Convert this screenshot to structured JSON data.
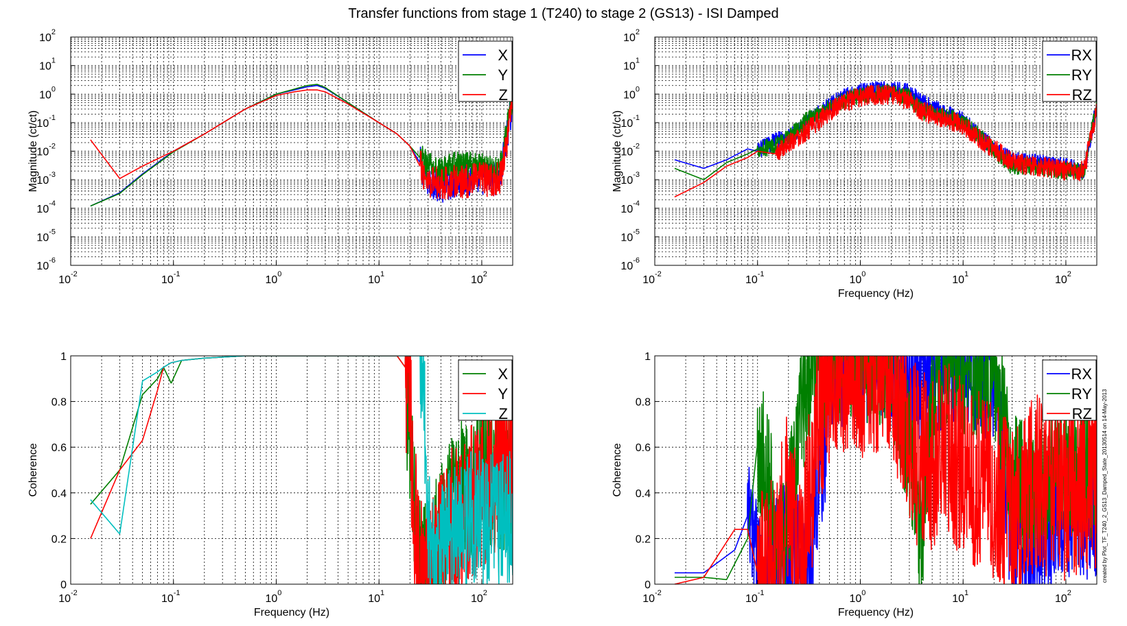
{
  "title": "Transfer functions from stage 1 (T240) to stage 2 (GS13) - ISI Damped",
  "side_note": "created by Plot_TF_T240_2_GS13_Damped_State_20130514 on 14-May-2013",
  "colors": {
    "blue": "#0000ff",
    "green": "#007f00",
    "red": "#ff0000",
    "cyan": "#00bfbf",
    "grid": "#000000"
  },
  "chart_data": [
    {
      "id": "p1",
      "type": "line",
      "xscale": "log",
      "yscale": "log",
      "xlim": [
        0.01,
        200
      ],
      "ylim": [
        1e-06,
        100
      ],
      "xlabel": "",
      "ylabel": "Magnitude (ct/ct)",
      "grid": true,
      "legend_position": "top-right",
      "x_ticks": [
        {
          "base": "10",
          "exp": "-2"
        },
        {
          "base": "10",
          "exp": "-1"
        },
        {
          "base": "10",
          "exp": "0"
        },
        {
          "base": "10",
          "exp": "1"
        },
        {
          "base": "10",
          "exp": "2"
        }
      ],
      "y_ticks": [
        {
          "base": "10",
          "exp": "-6"
        },
        {
          "base": "10",
          "exp": "-5"
        },
        {
          "base": "10",
          "exp": "-4"
        },
        {
          "base": "10",
          "exp": "-3"
        },
        {
          "base": "10",
          "exp": "-2"
        },
        {
          "base": "10",
          "exp": "-1"
        },
        {
          "base": "10",
          "exp": "0"
        },
        {
          "base": "10",
          "exp": "1"
        },
        {
          "base": "10",
          "exp": "2"
        }
      ],
      "series": [
        {
          "name": "X",
          "color": "#0000ff",
          "x": [
            0.0156,
            0.03,
            0.05,
            0.1,
            0.2,
            0.5,
            1,
            1.5,
            2,
            2.5,
            3,
            5,
            10,
            15,
            20,
            25,
            30,
            40,
            50,
            70,
            100,
            150,
            200
          ],
          "y": [
            0.00012,
            0.00035,
            0.0016,
            0.01,
            0.04,
            0.3,
            1.0,
            1.4,
            1.8,
            2.0,
            1.6,
            0.5,
            0.1,
            0.04,
            0.015,
            0.004,
            0.001,
            0.0006,
            0.0008,
            0.001,
            0.0012,
            0.001,
            0.6
          ],
          "noise_from": 25,
          "noise_decades": 0.6
        },
        {
          "name": "Y",
          "color": "#007f00",
          "x": [
            0.0156,
            0.03,
            0.05,
            0.1,
            0.2,
            0.5,
            1,
            1.5,
            2,
            2.5,
            3,
            5,
            10,
            15,
            20,
            25,
            30,
            40,
            50,
            70,
            100,
            150,
            200
          ],
          "y": [
            0.00012,
            0.00033,
            0.0015,
            0.0095,
            0.04,
            0.3,
            1.0,
            1.5,
            2.0,
            2.2,
            1.7,
            0.5,
            0.1,
            0.04,
            0.015,
            0.006,
            0.003,
            0.002,
            0.003,
            0.003,
            0.003,
            0.002,
            1.0
          ],
          "noise_from": 25,
          "noise_decades": 0.5
        },
        {
          "name": "Z",
          "color": "#ff0000",
          "x": [
            0.0156,
            0.03,
            0.05,
            0.1,
            0.2,
            0.5,
            1,
            1.5,
            2,
            2.5,
            3,
            5,
            10,
            15,
            20,
            25,
            30,
            40,
            50,
            70,
            100,
            150,
            200
          ],
          "y": [
            0.025,
            0.0011,
            0.003,
            0.01,
            0.04,
            0.3,
            0.9,
            1.2,
            1.4,
            1.4,
            1.2,
            0.45,
            0.1,
            0.04,
            0.015,
            0.003,
            0.001,
            0.0008,
            0.0008,
            0.0009,
            0.001,
            0.001,
            0.4
          ],
          "noise_from": 25,
          "noise_decades": 0.6
        }
      ]
    },
    {
      "id": "p2",
      "type": "line",
      "xscale": "log",
      "yscale": "log",
      "xlim": [
        0.01,
        200
      ],
      "ylim": [
        1e-06,
        100
      ],
      "xlabel": "Frequency (Hz)",
      "ylabel": "Magnitude (ct/ct)",
      "grid": true,
      "legend_position": "top-right",
      "x_ticks": [
        {
          "base": "10",
          "exp": "-2"
        },
        {
          "base": "10",
          "exp": "-1"
        },
        {
          "base": "10",
          "exp": "0"
        },
        {
          "base": "10",
          "exp": "1"
        },
        {
          "base": "10",
          "exp": "2"
        }
      ],
      "y_ticks": [
        {
          "base": "10",
          "exp": "-6"
        },
        {
          "base": "10",
          "exp": "-5"
        },
        {
          "base": "10",
          "exp": "-4"
        },
        {
          "base": "10",
          "exp": "-3"
        },
        {
          "base": "10",
          "exp": "-2"
        },
        {
          "base": "10",
          "exp": "-1"
        },
        {
          "base": "10",
          "exp": "0"
        },
        {
          "base": "10",
          "exp": "1"
        },
        {
          "base": "10",
          "exp": "2"
        }
      ],
      "series": [
        {
          "name": "RX",
          "color": "#0000ff",
          "x": [
            0.0156,
            0.03,
            0.05,
            0.08,
            0.1,
            0.15,
            0.2,
            0.3,
            0.5,
            0.7,
            1,
            1.5,
            2,
            3,
            4,
            6,
            10,
            15,
            20,
            30,
            50,
            100,
            150,
            200
          ],
          "y": [
            0.005,
            0.0025,
            0.005,
            0.012,
            0.01,
            0.025,
            0.03,
            0.1,
            0.4,
            0.8,
            1.2,
            1.4,
            1.5,
            1.2,
            0.5,
            0.25,
            0.12,
            0.03,
            0.012,
            0.005,
            0.004,
            0.003,
            0.002,
            0.4
          ],
          "noise_from": 0.1,
          "noise_decades": 0.3
        },
        {
          "name": "RY",
          "color": "#007f00",
          "x": [
            0.0156,
            0.03,
            0.05,
            0.08,
            0.1,
            0.15,
            0.2,
            0.3,
            0.5,
            0.7,
            1,
            1.5,
            2,
            3,
            4,
            6,
            10,
            15,
            20,
            30,
            50,
            100,
            150,
            200
          ],
          "y": [
            0.0025,
            0.001,
            0.004,
            0.008,
            0.012,
            0.015,
            0.03,
            0.12,
            0.35,
            0.6,
            0.9,
            1.1,
            1.1,
            0.8,
            0.25,
            0.2,
            0.1,
            0.03,
            0.01,
            0.003,
            0.003,
            0.002,
            0.002,
            0.5
          ],
          "noise_from": 0.1,
          "noise_decades": 0.3
        },
        {
          "name": "RZ",
          "color": "#ff0000",
          "x": [
            0.0156,
            0.03,
            0.05,
            0.08,
            0.1,
            0.15,
            0.2,
            0.3,
            0.5,
            0.7,
            1,
            1.5,
            2,
            3,
            4,
            6,
            10,
            15,
            20,
            30,
            50,
            100,
            150,
            200
          ],
          "y": [
            0.00025,
            0.0008,
            0.003,
            0.006,
            0.01,
            0.008,
            0.02,
            0.05,
            0.25,
            0.5,
            0.8,
            1.0,
            0.9,
            0.6,
            0.25,
            0.15,
            0.08,
            0.025,
            0.012,
            0.004,
            0.003,
            0.002,
            0.002,
            0.3
          ],
          "noise_from": 0.15,
          "noise_decades": 0.35
        }
      ]
    },
    {
      "id": "p3",
      "type": "line",
      "xscale": "log",
      "yscale": "linear",
      "xlim": [
        0.01,
        200
      ],
      "ylim": [
        0,
        1
      ],
      "xlabel": "Frequency (Hz)",
      "ylabel": "Coherence",
      "grid": true,
      "legend_position": "top-right",
      "x_ticks": [
        {
          "base": "10",
          "exp": "-2"
        },
        {
          "base": "10",
          "exp": "-1"
        },
        {
          "base": "10",
          "exp": "0"
        },
        {
          "base": "10",
          "exp": "1"
        },
        {
          "base": "10",
          "exp": "2"
        }
      ],
      "y_ticks": [
        {
          "base": "0",
          "exp": ""
        },
        {
          "base": "0.2",
          "exp": ""
        },
        {
          "base": "0.4",
          "exp": ""
        },
        {
          "base": "0.6",
          "exp": ""
        },
        {
          "base": "0.8",
          "exp": ""
        },
        {
          "base": "1",
          "exp": ""
        }
      ],
      "series": [
        {
          "name": "X",
          "color": "#007f00",
          "x": [
            0.0156,
            0.03,
            0.05,
            0.07,
            0.08,
            0.095,
            0.12,
            0.2,
            0.5,
            1,
            5,
            15,
            18,
            20,
            22,
            25,
            30,
            50,
            100,
            200
          ],
          "y": [
            0.35,
            0.5,
            0.83,
            0.9,
            0.95,
            0.88,
            0.98,
            0.99,
            1.0,
            1.0,
            1.0,
            1.0,
            0.95,
            0.7,
            0.3,
            0.05,
            0.02,
            0.3,
            0.5,
            0.5
          ],
          "noise_from": 18,
          "noise_amp": 0.35
        },
        {
          "name": "Y",
          "color": "#ff0000",
          "x": [
            0.0156,
            0.03,
            0.05,
            0.07,
            0.08,
            0.095,
            0.12,
            0.2,
            0.5,
            1,
            5,
            15,
            18,
            20,
            22,
            25,
            30,
            50,
            100,
            200
          ],
          "y": [
            0.2,
            0.5,
            0.63,
            0.85,
            0.95,
            0.97,
            0.98,
            0.99,
            1.0,
            1.0,
            1.0,
            1.0,
            0.95,
            0.8,
            0.3,
            0.05,
            0.02,
            0.25,
            0.4,
            0.6
          ],
          "noise_from": 18,
          "noise_amp": 0.35
        },
        {
          "name": "Z",
          "color": "#00bfbf",
          "x": [
            0.0156,
            0.03,
            0.05,
            0.07,
            0.08,
            0.095,
            0.12,
            0.2,
            0.5,
            1,
            5,
            15,
            20,
            25,
            28,
            30,
            35,
            50,
            100,
            200
          ],
          "y": [
            0.37,
            0.22,
            0.89,
            0.93,
            0.95,
            0.97,
            0.98,
            0.99,
            1.0,
            1.0,
            1.0,
            1.0,
            1.0,
            1.0,
            0.7,
            0.3,
            0.1,
            0.25,
            0.3,
            0.3
          ],
          "noise_from": 25,
          "noise_amp": 0.3
        }
      ]
    },
    {
      "id": "p4",
      "type": "line",
      "xscale": "log",
      "yscale": "linear",
      "xlim": [
        0.01,
        200
      ],
      "ylim": [
        0,
        1
      ],
      "xlabel": "Frequency (Hz)",
      "ylabel": "Coherence",
      "grid": true,
      "legend_position": "top-right",
      "x_ticks": [
        {
          "base": "10",
          "exp": "-2"
        },
        {
          "base": "10",
          "exp": "-1"
        },
        {
          "base": "10",
          "exp": "0"
        },
        {
          "base": "10",
          "exp": "1"
        },
        {
          "base": "10",
          "exp": "2"
        }
      ],
      "y_ticks": [
        {
          "base": "0",
          "exp": ""
        },
        {
          "base": "0.2",
          "exp": ""
        },
        {
          "base": "0.4",
          "exp": ""
        },
        {
          "base": "0.6",
          "exp": ""
        },
        {
          "base": "0.8",
          "exp": ""
        },
        {
          "base": "1",
          "exp": ""
        }
      ],
      "series": [
        {
          "name": "RX",
          "color": "#0000ff",
          "x": [
            0.0156,
            0.03,
            0.06,
            0.08,
            0.1,
            0.15,
            0.2,
            0.3,
            0.4,
            0.45,
            0.5,
            0.7,
            1,
            2,
            3,
            5,
            7,
            10,
            20,
            30,
            40,
            60,
            100,
            200
          ],
          "y": [
            0.05,
            0.05,
            0.15,
            0.3,
            0.05,
            0.1,
            0.2,
            0.1,
            0.5,
            0.6,
            0.98,
            0.99,
            1.0,
            0.98,
            0.9,
            0.95,
            0.99,
            0.98,
            0.9,
            0.2,
            0.1,
            0.2,
            0.3,
            0.3
          ],
          "noise_from": 0.08,
          "noise_amp": 0.3
        },
        {
          "name": "RY",
          "color": "#007f00",
          "x": [
            0.0156,
            0.03,
            0.05,
            0.08,
            0.1,
            0.13,
            0.15,
            0.2,
            0.3,
            0.4,
            0.5,
            0.7,
            1,
            2,
            3,
            4,
            5,
            7,
            10,
            20,
            30,
            50,
            100,
            200
          ],
          "y": [
            0.03,
            0.03,
            0.02,
            0.2,
            0.62,
            0.5,
            0.05,
            0.3,
            0.9,
            0.97,
            0.98,
            0.99,
            1.0,
            0.95,
            0.6,
            0.2,
            0.8,
            0.99,
            0.95,
            0.9,
            0.5,
            0.4,
            0.5,
            0.5
          ],
          "noise_from": 0.1,
          "noise_amp": 0.3
        },
        {
          "name": "RZ",
          "color": "#ff0000",
          "x": [
            0.0156,
            0.03,
            0.06,
            0.08,
            0.1,
            0.15,
            0.2,
            0.25,
            0.3,
            0.4,
            0.5,
            0.7,
            1,
            2,
            3,
            5,
            7,
            10,
            20,
            30,
            50,
            100,
            200
          ],
          "y": [
            0.0,
            0.03,
            0.24,
            0.24,
            0.05,
            0.1,
            0.4,
            0.1,
            0.3,
            0.7,
            0.9,
            0.98,
            0.95,
            0.98,
            0.6,
            0.5,
            0.6,
            0.5,
            0.4,
            0.3,
            0.45,
            0.4,
            0.45
          ],
          "noise_from": 0.1,
          "noise_amp": 0.4
        }
      ]
    }
  ]
}
